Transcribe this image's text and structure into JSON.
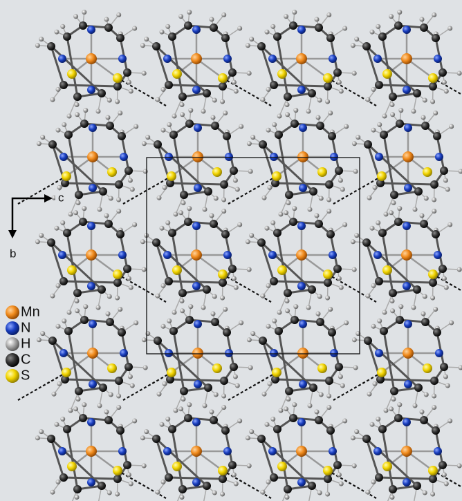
{
  "axes": {
    "horizontal": "c",
    "vertical": "b"
  },
  "legend": [
    {
      "label": "Mn"
    },
    {
      "label": "N"
    },
    {
      "label": "H"
    },
    {
      "label": "C"
    },
    {
      "label": "S"
    }
  ]
}
